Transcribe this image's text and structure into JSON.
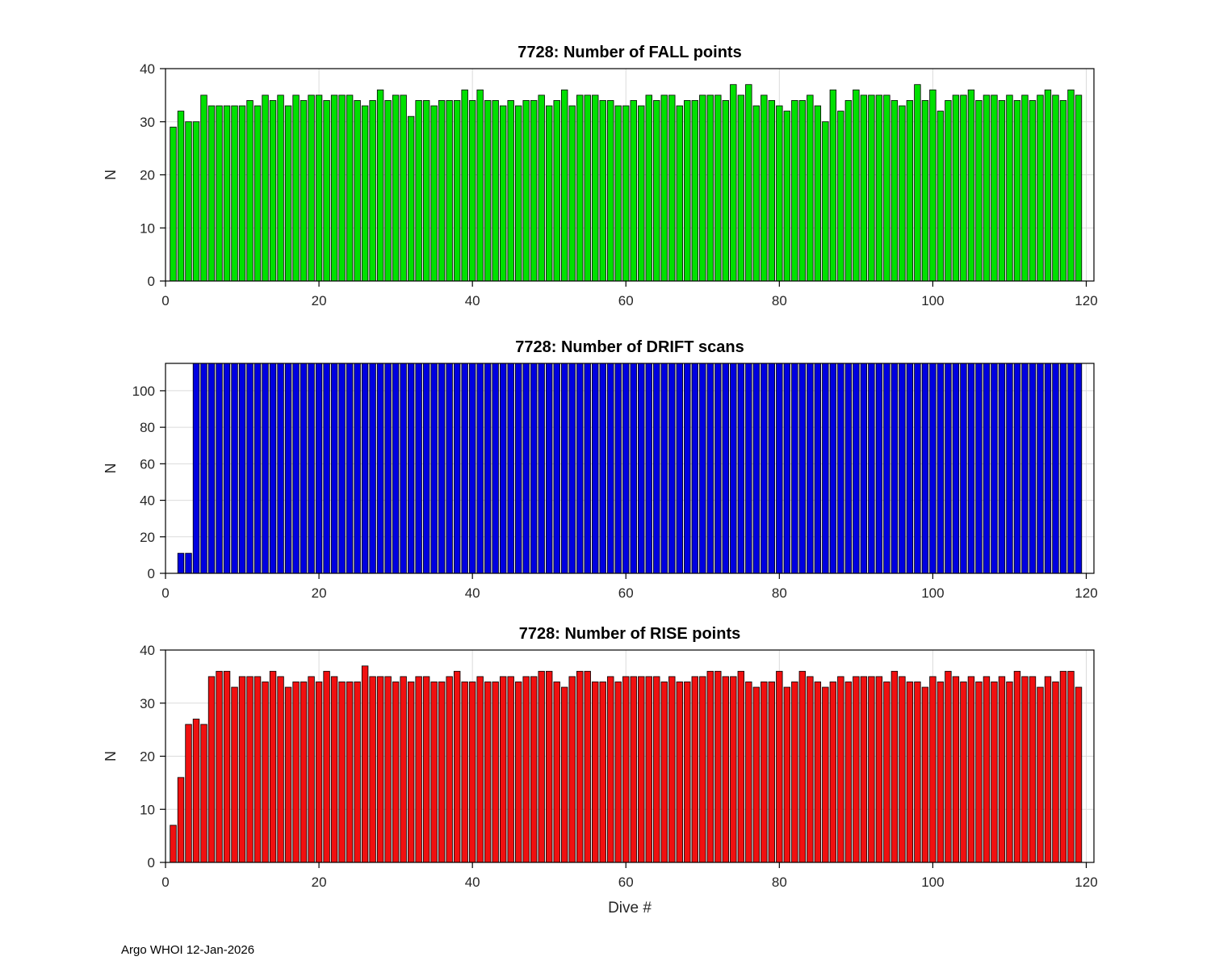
{
  "figure": {
    "footer": "Argo WHOI 12-Jan-2026",
    "background": "#ffffff",
    "axis_color": "#000000",
    "grid_color": "#dbdbdb",
    "tick_label_color": "#262626"
  },
  "chart_data": [
    {
      "type": "bar",
      "name": "fall-points",
      "title": "7728: Number of FALL points",
      "xlabel": "",
      "ylabel": "N",
      "color": "#00e000",
      "bar_edge_color": "#000000",
      "xlim": [
        0,
        121
      ],
      "ylim": [
        0,
        40
      ],
      "xticks": [
        0,
        20,
        40,
        60,
        80,
        100,
        120
      ],
      "yticks": [
        0,
        10,
        20,
        30,
        40
      ],
      "grid": true,
      "x_note": "dive numbers 1-119 sequential",
      "x_start": 1,
      "values": [
        29,
        32,
        30,
        30,
        35,
        33,
        33,
        33,
        33,
        33,
        34,
        33,
        35,
        34,
        35,
        33,
        35,
        34,
        35,
        35,
        34,
        35,
        35,
        35,
        34,
        33,
        34,
        36,
        34,
        35,
        35,
        31,
        34,
        34,
        33,
        34,
        34,
        34,
        36,
        34,
        36,
        34,
        34,
        33,
        34,
        33,
        34,
        34,
        35,
        33,
        34,
        36,
        33,
        35,
        35,
        35,
        34,
        34,
        33,
        33,
        34,
        33,
        35,
        34,
        35,
        35,
        33,
        34,
        34,
        35,
        35,
        35,
        34,
        37,
        35,
        37,
        33,
        35,
        34,
        33,
        32,
        34,
        34,
        35,
        33,
        30,
        36,
        32,
        34,
        36,
        35,
        35,
        35,
        35,
        34,
        33,
        34,
        37,
        34,
        36,
        32,
        34,
        35,
        35,
        36,
        34,
        35,
        35,
        34,
        35,
        34,
        35,
        34,
        35,
        36,
        35,
        34,
        36,
        35
      ]
    },
    {
      "type": "bar",
      "name": "drift-scans",
      "title": "7728: Number of DRIFT scans",
      "xlabel": "",
      "ylabel": "N",
      "color": "#0000e0",
      "bar_edge_color": "#000000",
      "xlim": [
        0,
        121
      ],
      "ylim": [
        0,
        115
      ],
      "xticks": [
        0,
        20,
        40,
        60,
        80,
        100,
        120
      ],
      "yticks": [
        0,
        20,
        40,
        60,
        80,
        100
      ],
      "grid": true,
      "x_note": "dive numbers 1-119 sequential",
      "x_start": 1,
      "values": [
        0,
        11,
        11,
        115,
        115,
        115,
        115,
        115,
        115,
        115,
        115,
        115,
        115,
        115,
        115,
        115,
        115,
        115,
        115,
        115,
        115,
        115,
        115,
        115,
        115,
        115,
        115,
        115,
        115,
        115,
        115,
        115,
        115,
        115,
        115,
        115,
        115,
        115,
        115,
        115,
        115,
        115,
        115,
        115,
        115,
        115,
        115,
        115,
        115,
        115,
        115,
        115,
        115,
        115,
        115,
        115,
        115,
        115,
        115,
        115,
        115,
        115,
        115,
        115,
        115,
        115,
        115,
        115,
        115,
        115,
        115,
        115,
        115,
        115,
        115,
        115,
        115,
        115,
        115,
        115,
        115,
        115,
        115,
        115,
        115,
        115,
        115,
        115,
        115,
        115,
        115,
        115,
        115,
        115,
        115,
        115,
        115,
        115,
        115,
        115,
        115,
        115,
        115,
        115,
        115,
        115,
        115,
        115,
        115,
        115,
        115,
        115,
        115,
        115,
        115,
        115,
        115,
        115,
        115
      ]
    },
    {
      "type": "bar",
      "name": "rise-points",
      "title": "7728: Number of RISE points",
      "xlabel": "Dive #",
      "ylabel": "N",
      "color": "#f01010",
      "bar_edge_color": "#000000",
      "xlim": [
        0,
        121
      ],
      "ylim": [
        0,
        40
      ],
      "xticks": [
        0,
        20,
        40,
        60,
        80,
        100,
        120
      ],
      "yticks": [
        0,
        10,
        20,
        30,
        40
      ],
      "grid": true,
      "x_note": "dive numbers 1-119 sequential",
      "x_start": 1,
      "values": [
        7,
        16,
        26,
        27,
        26,
        35,
        36,
        36,
        33,
        35,
        35,
        35,
        34,
        36,
        35,
        33,
        34,
        34,
        35,
        34,
        36,
        35,
        34,
        34,
        34,
        37,
        35,
        35,
        35,
        34,
        35,
        34,
        35,
        35,
        34,
        34,
        35,
        36,
        34,
        34,
        35,
        34,
        34,
        35,
        35,
        34,
        35,
        35,
        36,
        36,
        34,
        33,
        35,
        36,
        36,
        34,
        34,
        35,
        34,
        35,
        35,
        35,
        35,
        35,
        34,
        35,
        34,
        34,
        35,
        35,
        36,
        36,
        35,
        35,
        36,
        34,
        33,
        34,
        34,
        36,
        33,
        34,
        36,
        35,
        34,
        33,
        34,
        35,
        34,
        35,
        35,
        35,
        35,
        34,
        36,
        35,
        34,
        34,
        33,
        35,
        34,
        36,
        35,
        34,
        35,
        34,
        35,
        34,
        35,
        34,
        36,
        35,
        35,
        33,
        35,
        34,
        36,
        36,
        33
      ]
    }
  ]
}
